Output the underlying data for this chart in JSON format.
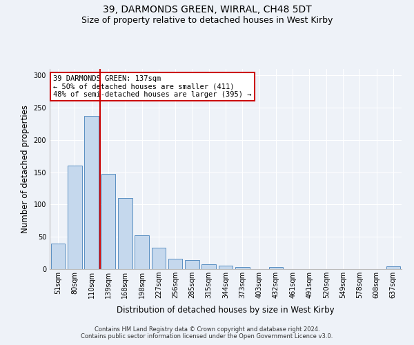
{
  "title": "39, DARMONDS GREEN, WIRRAL, CH48 5DT",
  "subtitle": "Size of property relative to detached houses in West Kirby",
  "xlabel": "Distribution of detached houses by size in West Kirby",
  "ylabel": "Number of detached properties",
  "categories": [
    "51sqm",
    "80sqm",
    "110sqm",
    "139sqm",
    "168sqm",
    "198sqm",
    "227sqm",
    "256sqm",
    "285sqm",
    "315sqm",
    "344sqm",
    "373sqm",
    "403sqm",
    "432sqm",
    "461sqm",
    "491sqm",
    "520sqm",
    "549sqm",
    "578sqm",
    "608sqm",
    "637sqm"
  ],
  "values": [
    40,
    160,
    237,
    147,
    110,
    52,
    33,
    16,
    14,
    8,
    5,
    3,
    0,
    3,
    0,
    0,
    0,
    0,
    0,
    0,
    4
  ],
  "bar_color": "#c5d8ed",
  "bar_edge_color": "#5a8fc2",
  "red_line_index": 2.5,
  "annotation_text": "39 DARMONDS GREEN: 137sqm\n← 50% of detached houses are smaller (411)\n48% of semi-detached houses are larger (395) →",
  "annotation_box_color": "#ffffff",
  "annotation_box_edge": "#cc0000",
  "ylim": [
    0,
    310
  ],
  "yticks": [
    0,
    50,
    100,
    150,
    200,
    250,
    300
  ],
  "footer1": "Contains HM Land Registry data © Crown copyright and database right 2024.",
  "footer2": "Contains public sector information licensed under the Open Government Licence v3.0.",
  "background_color": "#eef2f8",
  "grid_color": "#ffffff",
  "title_fontsize": 10,
  "subtitle_fontsize": 9,
  "xlabel_fontsize": 8.5,
  "ylabel_fontsize": 8.5,
  "tick_fontsize": 7,
  "footer_fontsize": 6,
  "annotation_fontsize": 7.5
}
